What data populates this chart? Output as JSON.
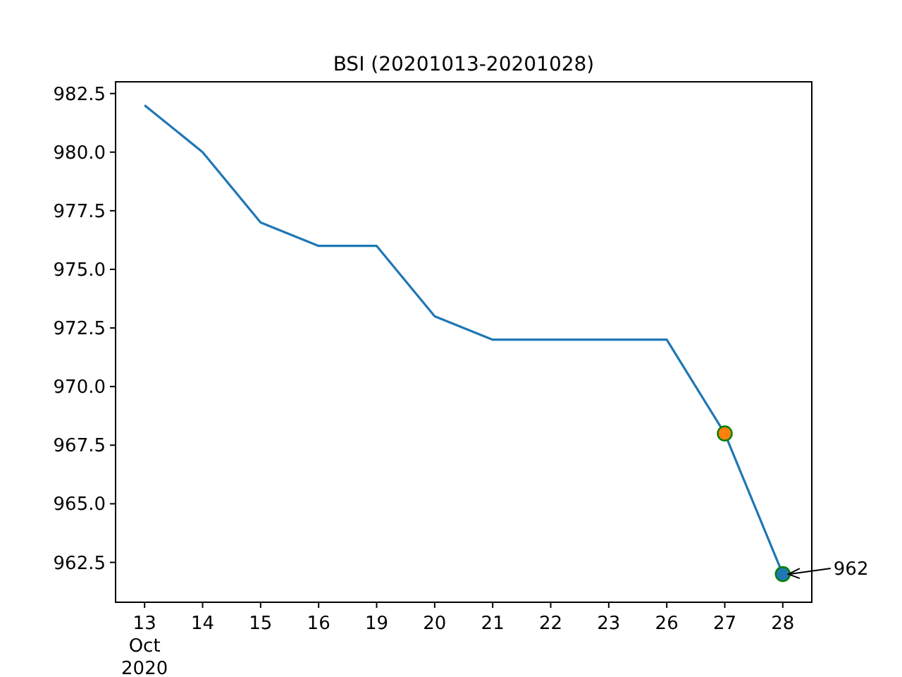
{
  "chart_data": {
    "type": "line",
    "title": "BSI (20201013-20201028)",
    "categories": [
      "13\nOct\n2020",
      "14",
      "15",
      "16",
      "19",
      "20",
      "21",
      "22",
      "23",
      "26",
      "27",
      "28"
    ],
    "series": [
      {
        "color": "#1f77b4",
        "values": [
          982,
          980,
          977,
          976,
          976,
          973,
          972,
          972,
          972,
          972,
          968,
          962
        ]
      },
      {
        "type": "scatter",
        "color": "#ff7f0e",
        "x": [
          "27"
        ],
        "values": [
          968
        ]
      },
      {
        "type": "scatter",
        "color": "#1f77b4",
        "x": [
          "28"
        ],
        "values": [
          962
        ]
      }
    ],
    "annotations": [
      {
        "text": "962",
        "x": "28",
        "y": 962
      }
    ],
    "ylim": [
      960.8,
      983.0
    ],
    "yticks": [
      {
        "value": 962.5,
        "label": "962.5"
      },
      {
        "value": 965,
        "label": "965.0"
      },
      {
        "value": 967.5,
        "label": "967.5"
      },
      {
        "value": 970,
        "label": "970.0"
      },
      {
        "value": 972.5,
        "label": "972.5"
      },
      {
        "value": 975,
        "label": "975.0"
      },
      {
        "value": 977.5,
        "label": "977.5"
      },
      {
        "value": 980,
        "label": "980.0"
      },
      {
        "value": 982.5,
        "label": "982.5"
      }
    ],
    "grid": false
  }
}
